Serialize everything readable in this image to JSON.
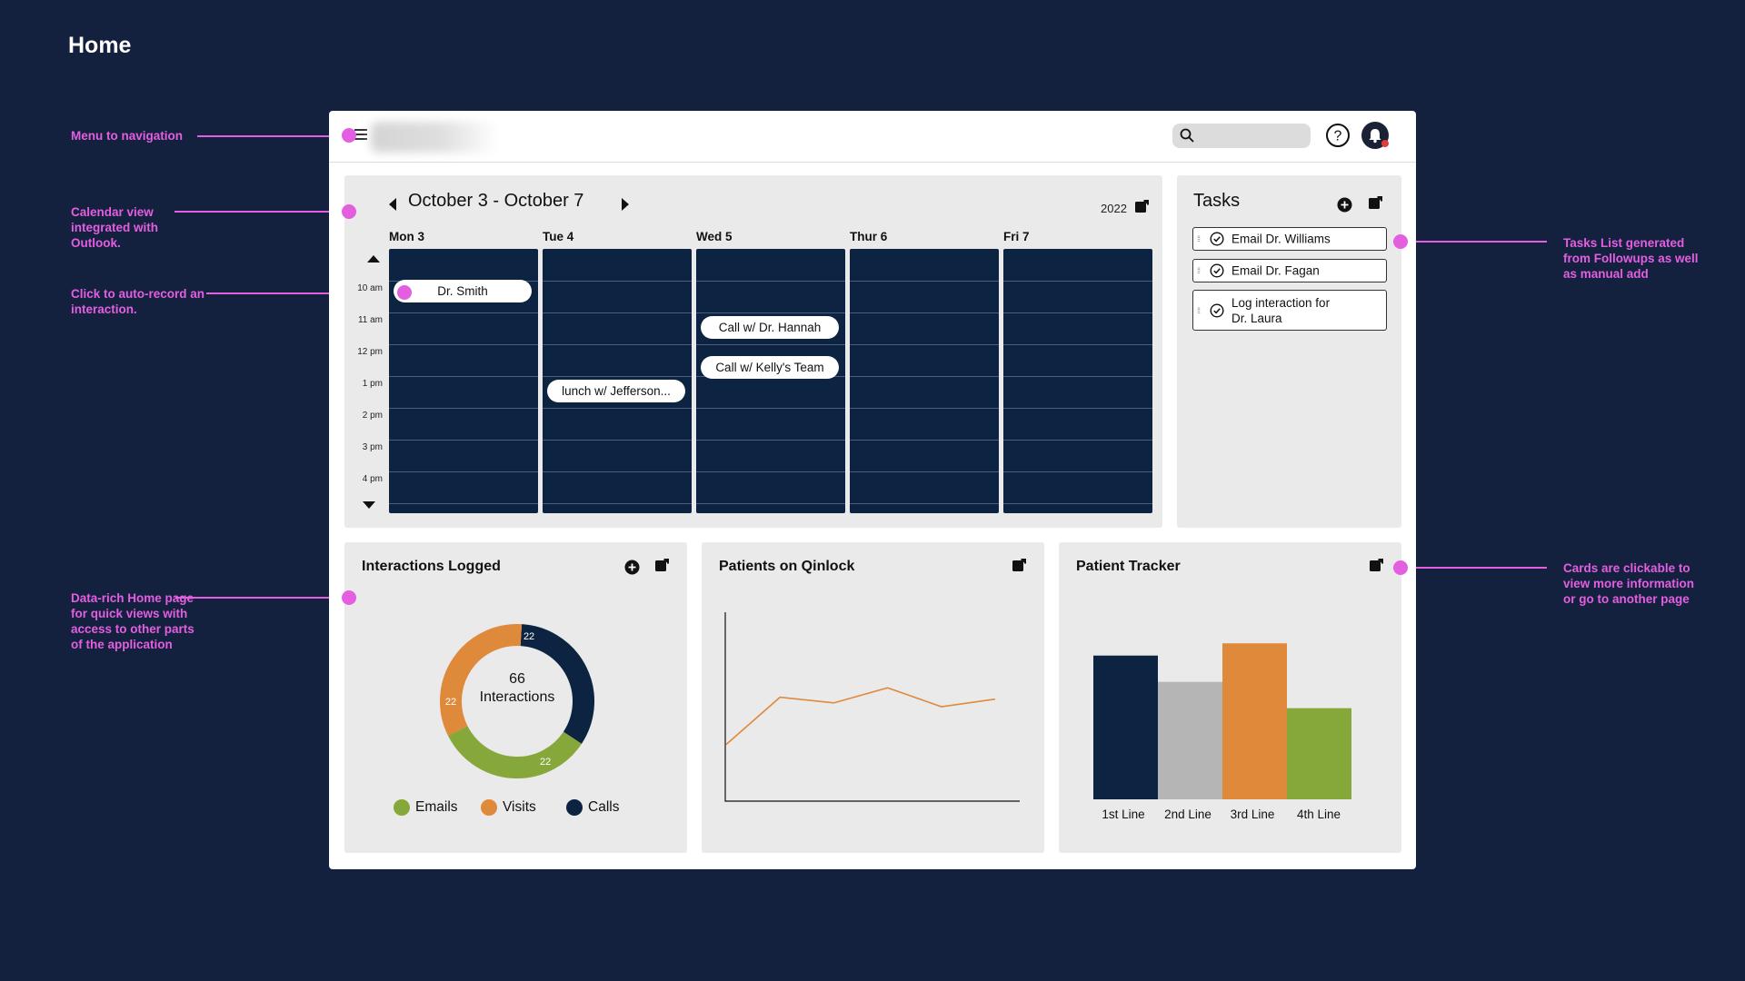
{
  "page": {
    "title": "Home"
  },
  "annotations": {
    "menu": "Menu to navigation",
    "calendar": "Calendar view integrated with Outlook.",
    "auto_record": "Click to auto-record an interaction.",
    "data_rich": "Data-rich Home page for quick views with access to other parts of the application",
    "tasks": "Tasks List generated from Followups as well as manual add",
    "cards": "Cards are clickable to view more information or go to another page"
  },
  "header": {
    "search_placeholder": ""
  },
  "calendar": {
    "range": "October 3 - October 7",
    "year": "2022",
    "days": [
      "Mon 3",
      "Tue 4",
      "Wed 5",
      "Thur 6",
      "Fri 7"
    ],
    "times": [
      "10 am",
      "11 am",
      "12 pm",
      "1 pm",
      "2 pm",
      "3 pm",
      "4 pm"
    ],
    "events": [
      {
        "day": "Mon 3",
        "label": "Dr. Smith"
      },
      {
        "day": "Tue 4",
        "label": "lunch w/ Jefferson..."
      },
      {
        "day": "Wed 5",
        "label": "Call w/ Dr. Hannah"
      },
      {
        "day": "Wed 5",
        "label": "Call w/ Kelly's Team"
      }
    ]
  },
  "tasks": {
    "title": "Tasks",
    "items": [
      {
        "label": "Email Dr. Williams"
      },
      {
        "label": "Email Dr. Fagan"
      },
      {
        "label_line1": "Log interaction for",
        "label_line2": "Dr. Laura"
      }
    ]
  },
  "interactions": {
    "title": "Interactions Logged",
    "center_value": "66",
    "center_label": "Interactions",
    "legend": [
      "Emails",
      "Visits",
      "Calls"
    ],
    "colors": {
      "emails": "#86a83b",
      "visits": "#df8a3b",
      "calls": "#0c2342"
    }
  },
  "patients": {
    "title": "Patients on Qinlock"
  },
  "tracker": {
    "title": "Patient Tracker"
  },
  "chart_data": [
    {
      "type": "pie",
      "categories": [
        "Calls",
        "Emails",
        "Visits"
      ],
      "values": [
        22,
        22,
        22
      ],
      "labels": [
        "22",
        "22",
        "22"
      ],
      "colors": [
        "#0c2342",
        "#86a83b",
        "#df8a3b"
      ],
      "title": "Interactions Logged",
      "legend": "bottom"
    },
    {
      "type": "line",
      "title": "Patients on Qinlock",
      "x": [
        1,
        2,
        3,
        4,
        5,
        6
      ],
      "series": [
        {
          "values": [
            30,
            55,
            52,
            60,
            50,
            54
          ],
          "color": "#df8a3b"
        }
      ],
      "ylim": [
        0,
        100
      ],
      "grid": false
    },
    {
      "type": "bar",
      "title": "Patient Tracker",
      "categories": [
        "1st Line",
        "2nd Line",
        "3rd Line",
        "4th Line"
      ],
      "values": [
        82,
        67,
        89,
        52
      ],
      "colors": [
        "#0c2342",
        "#b5b5b5",
        "#df8a3b",
        "#86a83b"
      ],
      "ylim": [
        0,
        100
      ]
    }
  ]
}
